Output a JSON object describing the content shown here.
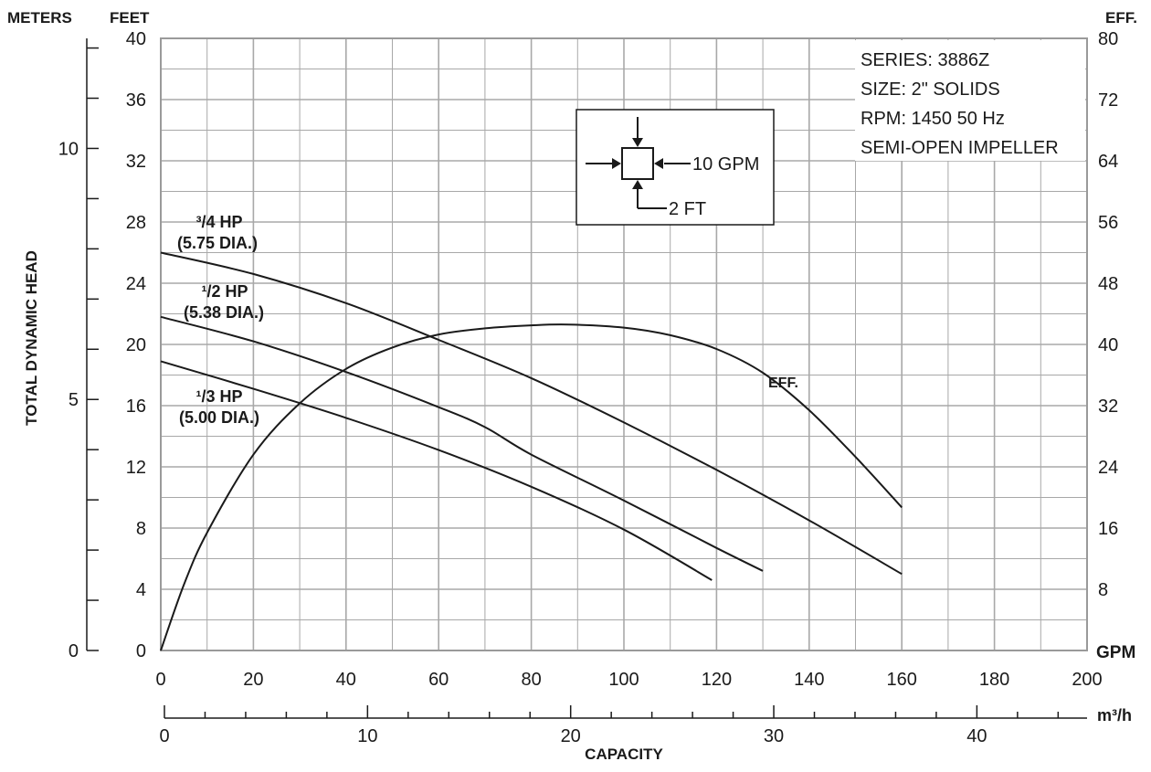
{
  "chart_data": {
    "type": "line",
    "series_info": {
      "series": "SERIES: 3886Z",
      "size": "SIZE: 2\" SOLIDS",
      "rpm": "RPM: 1450 50 Hz",
      "impeller": "SEMI-OPEN IMPELLER"
    },
    "axis_labels": {
      "meters": "METERS",
      "feet": "FEET",
      "eff": "EFF.",
      "y_title": "TOTAL DYNAMIC HEAD",
      "gpm": "GPM",
      "m3h": "m³/h",
      "x_title": "CAPACITY"
    },
    "feet_ticks": [
      "0",
      "4",
      "8",
      "12",
      "16",
      "20",
      "24",
      "28",
      "32",
      "36",
      "40"
    ],
    "meter_ticks": [
      "0",
      "5",
      "10"
    ],
    "eff_ticks": [
      "8",
      "16",
      "24",
      "32",
      "40",
      "48",
      "56",
      "64",
      "72",
      "80"
    ],
    "gpm_ticks": [
      "0",
      "20",
      "40",
      "60",
      "80",
      "100",
      "120",
      "140",
      "160",
      "180",
      "200"
    ],
    "m3h_ticks": [
      "0",
      "10",
      "20",
      "30",
      "40"
    ],
    "xlim_gpm": [
      0,
      200
    ],
    "ylim_feet": [
      0,
      40
    ],
    "ylim_eff": [
      0,
      80
    ],
    "grid": true,
    "scale_box": {
      "gpm_label": "10 GPM",
      "ft_label": "2 FT"
    },
    "series": [
      {
        "name": "3/4 HP (5.75 DIA.)",
        "label_line1": "³/4 HP",
        "label_line2": "(5.75 DIA.)",
        "x": [
          0,
          20,
          40,
          60,
          80,
          100,
          120,
          140,
          160
        ],
        "y": [
          26,
          24.6,
          22.7,
          20.3,
          17.8,
          14.9,
          11.8,
          8.5,
          5
        ]
      },
      {
        "name": "1/2 HP (5.38 DIA.)",
        "label_line1": "¹/2 HP",
        "label_line2": "(5.38 DIA.)",
        "x": [
          0,
          20,
          40,
          60,
          70,
          80,
          100,
          120,
          130
        ],
        "y": [
          21.8,
          20.2,
          18.2,
          15.9,
          14.6,
          12.8,
          9.8,
          6.7,
          5.2
        ]
      },
      {
        "name": "1/3 HP (5.00 DIA.)",
        "label_line1": "¹/3 HP",
        "label_line2": "(5.00 DIA.)",
        "x": [
          0,
          20,
          40,
          60,
          80,
          100,
          119
        ],
        "y": [
          18.9,
          17.1,
          15.2,
          13.1,
          10.7,
          7.9,
          4.6
        ]
      },
      {
        "name": "EFF.",
        "label_line1": "EFF.",
        "axis": "eff",
        "x": [
          0,
          5,
          10,
          20,
          30,
          40,
          50,
          60,
          70,
          80,
          88,
          100,
          110,
          120,
          130,
          140,
          150,
          160
        ],
        "y": [
          0,
          8.6,
          15.4,
          25.6,
          32.3,
          36.8,
          39.6,
          41.3,
          42.1,
          42.5,
          42.6,
          42.2,
          41.2,
          39.4,
          36.3,
          31.4,
          25.3,
          18.7
        ]
      }
    ]
  }
}
